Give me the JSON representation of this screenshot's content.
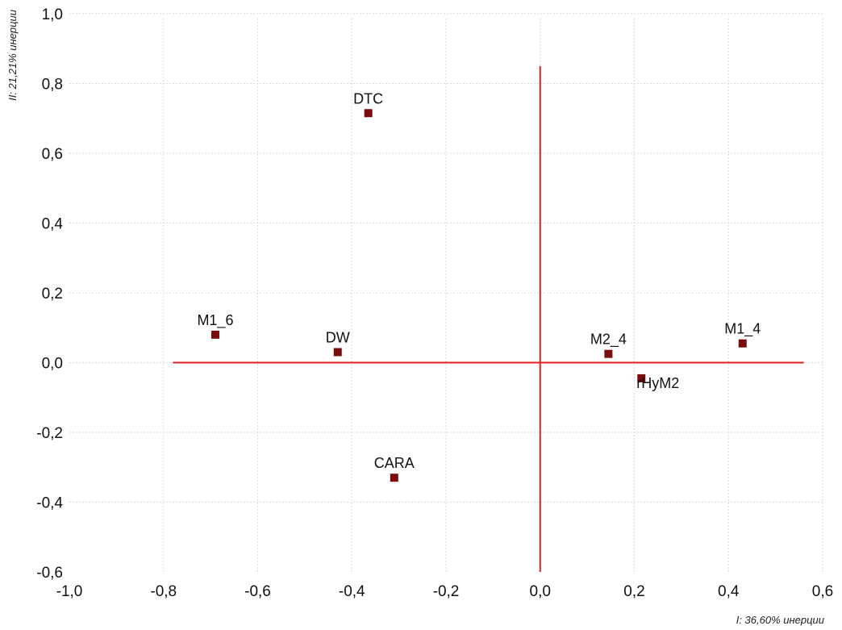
{
  "chart_data": {
    "type": "scatter",
    "title": "",
    "xlabel": "I: 36,60% инерции",
    "ylabel": "II: 21,21% инерции",
    "xlim": [
      -1.0,
      0.6
    ],
    "ylim": [
      -0.6,
      1.0
    ],
    "xticks": [
      -1.0,
      -0.8,
      -0.6,
      -0.4,
      -0.2,
      0.0,
      0.2,
      0.4,
      0.6
    ],
    "yticks": [
      -0.6,
      -0.4,
      -0.2,
      0.0,
      0.2,
      0.4,
      0.6,
      0.8,
      1.0
    ],
    "xtick_labels": [
      "-1,0",
      "-0,8",
      "-0,6",
      "-0,4",
      "-0,2",
      "0,0",
      "0,2",
      "0,4",
      "0,6"
    ],
    "ytick_labels": [
      "-0,6",
      "-0,4",
      "-0,2",
      "0,0",
      "0,2",
      "0,4",
      "0,6",
      "0,8",
      "1,0"
    ],
    "grid": true,
    "marker_color": "#7a0c0c",
    "reference_line_color": "#e02020",
    "reference_lines": {
      "horizontal_y": 0.0,
      "horizontal_x_range": [
        -0.78,
        0.56
      ],
      "vertical_x": 0.0,
      "vertical_y_range": [
        -0.6,
        0.85
      ]
    },
    "points": [
      {
        "label": "DTC",
        "x": -0.365,
        "y": 0.715
      },
      {
        "label": "M1_6",
        "x": -0.69,
        "y": 0.08
      },
      {
        "label": "DW",
        "x": -0.43,
        "y": 0.03
      },
      {
        "label": "CARA",
        "x": -0.31,
        "y": -0.33
      },
      {
        "label": "M2_4",
        "x": 0.145,
        "y": 0.025
      },
      {
        "label": "rHyM2",
        "x": 0.215,
        "y": -0.045
      },
      {
        "label": "M1_4",
        "x": 0.43,
        "y": 0.055
      }
    ]
  }
}
